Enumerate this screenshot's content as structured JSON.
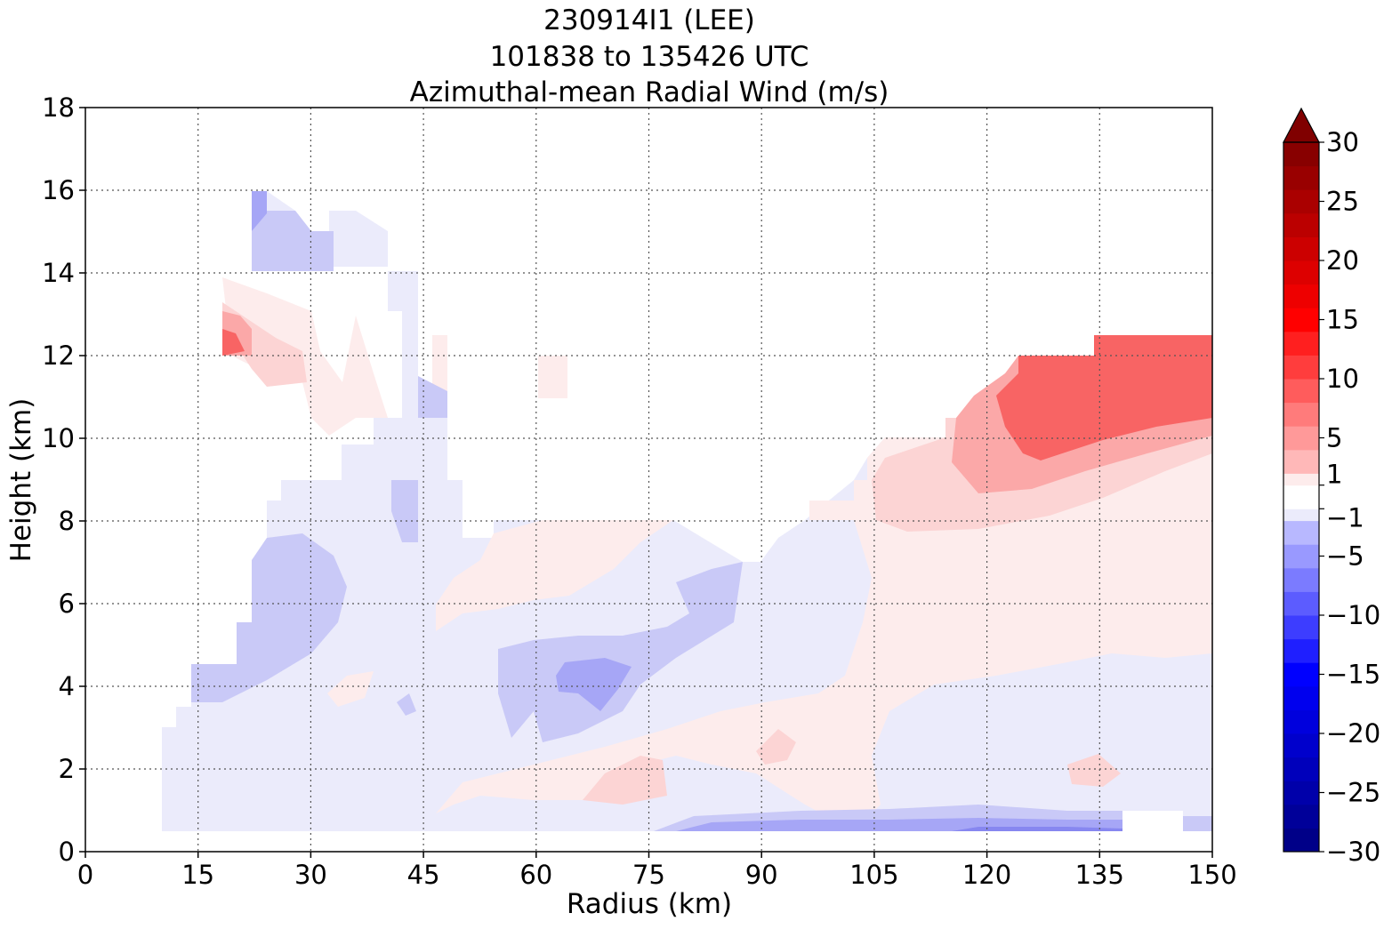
{
  "chart_data": {
    "type": "heatmap",
    "title_lines": [
      "230914I1 (LEE)",
      "101838 to 135426 UTC",
      "Azimuthal-mean Radial Wind (m/s)"
    ],
    "xlabel": "Radius (km)",
    "ylabel": "Height (km)",
    "xlim": [
      0,
      150
    ],
    "ylim": [
      0,
      18
    ],
    "xticks": [
      "0",
      "15",
      "30",
      "45",
      "60",
      "75",
      "90",
      "105",
      "120",
      "135",
      "150"
    ],
    "yticks": [
      "0",
      "2",
      "4",
      "6",
      "8",
      "10",
      "12",
      "14",
      "16",
      "18"
    ],
    "grid": true,
    "colorbar": {
      "min": -30,
      "max": 30,
      "extend": "max",
      "tick_labels": [
        "30",
        "25",
        "20",
        "15",
        "10",
        "5",
        "1",
        "−1",
        "−5",
        "−10",
        "−15",
        "−20",
        "−25",
        "−30"
      ],
      "tick_values": [
        30,
        25,
        20,
        15,
        10,
        5,
        1,
        -1,
        -5,
        -10,
        -15,
        -20,
        -25,
        -30
      ]
    },
    "regions_description_values_ms": {
      "outflow_max_upper_right": 10,
      "weak_inflow_lower_levels": -3
    },
    "field": [
      {
        "x": 18,
        "y": 12.2,
        "v": 6
      },
      {
        "x": 22,
        "y": 12.5,
        "v": 3
      },
      {
        "x": 25,
        "y": 15,
        "v": -2
      },
      {
        "x": 30,
        "y": 6,
        "v": -2.5
      },
      {
        "x": 20,
        "y": 4,
        "v": -2
      },
      {
        "x": 40,
        "y": 9,
        "v": -1.5
      },
      {
        "x": 55,
        "y": 6,
        "v": 0.5
      },
      {
        "x": 66,
        "y": 4.2,
        "v": -4
      },
      {
        "x": 70,
        "y": 3.5,
        "v": -2.5
      },
      {
        "x": 80,
        "y": 6,
        "v": -1.5
      },
      {
        "x": 70,
        "y": 1.8,
        "v": 1.5
      },
      {
        "x": 92,
        "y": 2.5,
        "v": 2
      },
      {
        "x": 100,
        "y": 3,
        "v": 0.5
      },
      {
        "x": 110,
        "y": 8.6,
        "v": 2
      },
      {
        "x": 120,
        "y": 9.8,
        "v": 5
      },
      {
        "x": 130,
        "y": 11,
        "v": 9
      },
      {
        "x": 145,
        "y": 11.5,
        "v": 10
      },
      {
        "x": 140,
        "y": 6,
        "v": 0.5
      },
      {
        "x": 130,
        "y": 3,
        "v": -1.2
      },
      {
        "x": 125,
        "y": 0.8,
        "v": -4
      },
      {
        "x": 90,
        "y": 0.7,
        "v": -3
      }
    ]
  }
}
